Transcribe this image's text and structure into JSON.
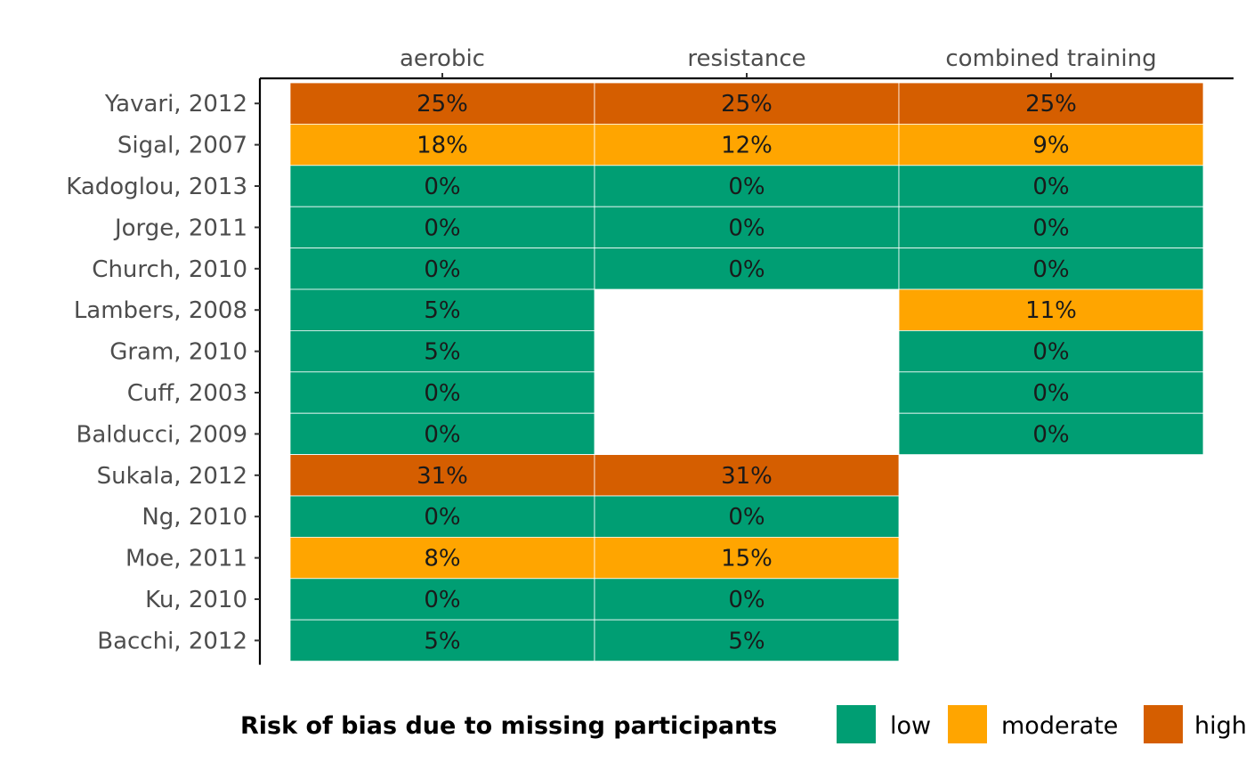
{
  "chart_data": {
    "type": "heatmap",
    "title": "",
    "columns": [
      "aerobic",
      "resistance",
      "combined training"
    ],
    "rows": [
      "Yavari, 2012",
      "Sigal, 2007",
      "Kadoglou, 2013",
      "Jorge, 2011",
      "Church, 2010",
      "Lambers, 2008",
      "Gram, 2010",
      "Cuff, 2003",
      "Balducci, 2009",
      "Sukala, 2012",
      "Ng, 2010",
      "Moe, 2011",
      "Ku, 2010",
      "Bacchi, 2012"
    ],
    "cells": [
      [
        {
          "label": "25%",
          "level": "high"
        },
        {
          "label": "25%",
          "level": "high"
        },
        {
          "label": "25%",
          "level": "high"
        }
      ],
      [
        {
          "label": "18%",
          "level": "moderate"
        },
        {
          "label": "12%",
          "level": "moderate"
        },
        {
          "label": "9%",
          "level": "moderate"
        }
      ],
      [
        {
          "label": "0%",
          "level": "low"
        },
        {
          "label": "0%",
          "level": "low"
        },
        {
          "label": "0%",
          "level": "low"
        }
      ],
      [
        {
          "label": "0%",
          "level": "low"
        },
        {
          "label": "0%",
          "level": "low"
        },
        {
          "label": "0%",
          "level": "low"
        }
      ],
      [
        {
          "label": "0%",
          "level": "low"
        },
        {
          "label": "0%",
          "level": "low"
        },
        {
          "label": "0%",
          "level": "low"
        }
      ],
      [
        {
          "label": "5%",
          "level": "low"
        },
        null,
        {
          "label": "11%",
          "level": "moderate"
        }
      ],
      [
        {
          "label": "5%",
          "level": "low"
        },
        null,
        {
          "label": "0%",
          "level": "low"
        }
      ],
      [
        {
          "label": "0%",
          "level": "low"
        },
        null,
        {
          "label": "0%",
          "level": "low"
        }
      ],
      [
        {
          "label": "0%",
          "level": "low"
        },
        null,
        {
          "label": "0%",
          "level": "low"
        }
      ],
      [
        {
          "label": "31%",
          "level": "high"
        },
        {
          "label": "31%",
          "level": "high"
        },
        null
      ],
      [
        {
          "label": "0%",
          "level": "low"
        },
        {
          "label": "0%",
          "level": "low"
        },
        null
      ],
      [
        {
          "label": "8%",
          "level": "moderate"
        },
        {
          "label": "15%",
          "level": "moderate"
        },
        null
      ],
      [
        {
          "label": "0%",
          "level": "low"
        },
        {
          "label": "0%",
          "level": "low"
        },
        null
      ],
      [
        {
          "label": "5%",
          "level": "low"
        },
        {
          "label": "5%",
          "level": "low"
        },
        null
      ]
    ],
    "legend": {
      "title": "Risk of bias due to missing participants",
      "position": "bottom",
      "items": [
        {
          "level": "low",
          "label": "low",
          "color": "#009E73"
        },
        {
          "level": "moderate",
          "label": "moderate",
          "color": "#FFA500"
        },
        {
          "level": "high",
          "label": "high",
          "color": "#D55E00"
        }
      ]
    },
    "grid": false
  }
}
